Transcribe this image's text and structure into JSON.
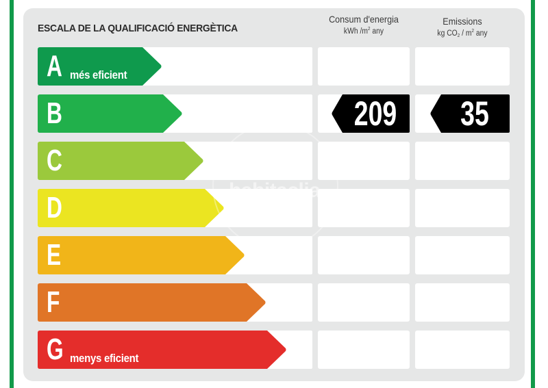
{
  "title": "ESCALA DE LA QUALIFICACIÓ ENERGÈTICA",
  "columns": [
    {
      "label": "Consum d'energia",
      "unit_pre": "kWh /m",
      "unit_sup": "2",
      "unit_post": " any"
    },
    {
      "label": "Emissions",
      "unit_pre": "kg CO",
      "unit_sub": "2",
      "unit_mid": " / m",
      "unit_sup": "2",
      "unit_post": " any"
    }
  ],
  "ratings": [
    {
      "letter": "A",
      "sub": "més eficient",
      "color": "#0f9a4d"
    },
    {
      "letter": "B",
      "sub": "",
      "color": "#21b04b"
    },
    {
      "letter": "C",
      "sub": "",
      "color": "#9bc93c"
    },
    {
      "letter": "D",
      "sub": "",
      "color": "#ebe521"
    },
    {
      "letter": "E",
      "sub": "",
      "color": "#f1b519"
    },
    {
      "letter": "F",
      "sub": "",
      "color": "#e07527"
    },
    {
      "letter": "G",
      "sub": "menys eficient",
      "color": "#e42d2b"
    }
  ],
  "current": {
    "rating": "B",
    "consumption": "209",
    "emissions": "35"
  },
  "watermark": "habitaclia",
  "frame_color": "#119a4a"
}
